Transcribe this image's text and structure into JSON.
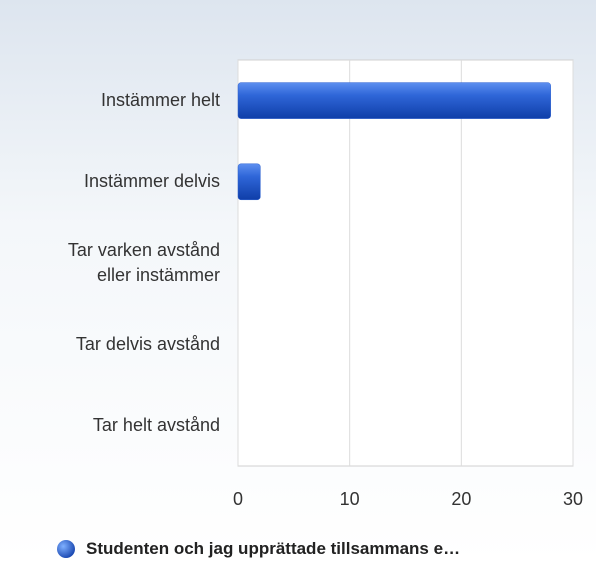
{
  "chart_data": {
    "type": "hbar",
    "categories": [
      "Instämmer helt",
      "Instämmer delvis",
      "Tar varken avstånd eller instämmer",
      "Tar delvis avstånd",
      "Tar helt avstånd"
    ],
    "series": [
      {
        "name": "Studenten och jag upprättade tillsammans e…",
        "color": "#2a5fd0",
        "values": [
          28,
          2,
          0,
          0,
          0
        ]
      }
    ],
    "xlim": [
      0,
      30
    ],
    "xticks": [
      0,
      10,
      20,
      30
    ],
    "grid": true,
    "legend": "bottom"
  }
}
